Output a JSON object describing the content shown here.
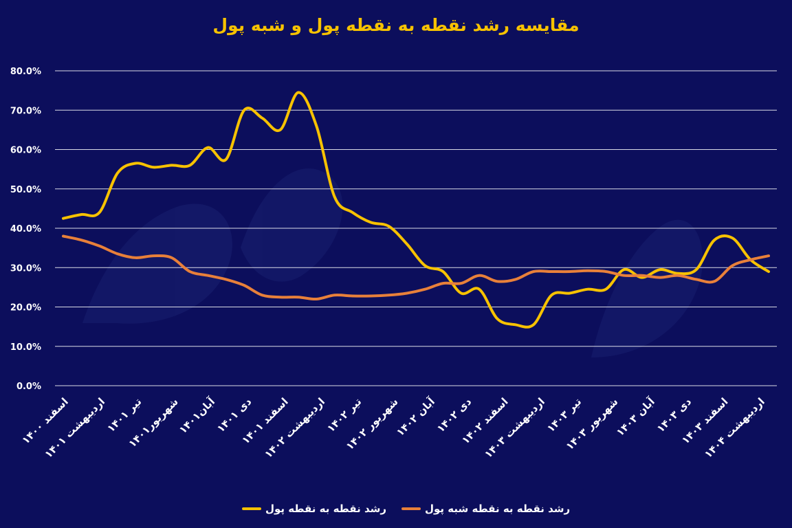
{
  "title": "مقایسه رشد نقطه به نقطه پول و شبه پول",
  "colors": {
    "background": "#0c0e5c",
    "grid": "#ffffff",
    "title": "#f7c200"
  },
  "chart_data": {
    "type": "line",
    "ylim": [
      0,
      80
    ],
    "yticks": [
      "80.0%",
      "70.0%",
      "60.0%",
      "50.0%",
      "40.0%",
      "30.0%",
      "20.0%",
      "10.0%",
      "0.0%"
    ],
    "x_tick_labels": [
      "اسفند ۱۴۰۰",
      "اردیبهشت ۱۴۰۱",
      "تیر ۱۴۰۱",
      "شهریور۱۴۰۱",
      "آبان۱۴۰۱",
      "دی ۱۴۰۱",
      "اسفند ۱۴۰۱",
      "اردیبهشت ۱۴۰۲",
      "تیر ۱۴۰۲",
      "شهریور ۱۴۰۲",
      "آبان ۱۴۰۲",
      "دی ۱۴۰۲",
      "اسفند ۱۴۰۲",
      "اردیبهشت ۱۴۰۳",
      "تیر ۱۴۰۳",
      "شهریور ۱۴۰۳",
      "آبان ۱۴۰۳",
      "دی ۱۴۰۳",
      "اسفند ۱۴۰۳",
      "اردیبهشت ۱۴۰۴"
    ],
    "grid": true,
    "legend_position": "bottom-center",
    "series": [
      {
        "name": "رشد نقطه به نقطه پول",
        "color": "#f7c200",
        "values": [
          42.5,
          43.5,
          44,
          54,
          56.5,
          55.5,
          56,
          56,
          60.5,
          57.5,
          70,
          68,
          65,
          74.5,
          66,
          48,
          44,
          41.5,
          40.5,
          36,
          30.5,
          29,
          23.5,
          24.5,
          17,
          15.5,
          15.5,
          23,
          23.5,
          24.5,
          24.5,
          29.5,
          27.5,
          29.5,
          28.5,
          29.5,
          37,
          37.5,
          32,
          29
        ]
      },
      {
        "name": "رشد نقطه به نقطه شبه پول",
        "color": "#e8803a",
        "values": [
          38,
          37,
          35.5,
          33.5,
          32.5,
          33,
          32.5,
          29,
          28,
          27,
          25.5,
          23,
          22.5,
          22.5,
          22,
          23,
          22.8,
          22.8,
          23,
          23.5,
          24.5,
          26,
          26,
          28,
          26.5,
          27,
          29,
          29,
          29,
          29.2,
          29,
          28,
          28,
          27.5,
          28,
          27,
          26.5,
          30.5,
          32,
          33
        ]
      }
    ]
  }
}
